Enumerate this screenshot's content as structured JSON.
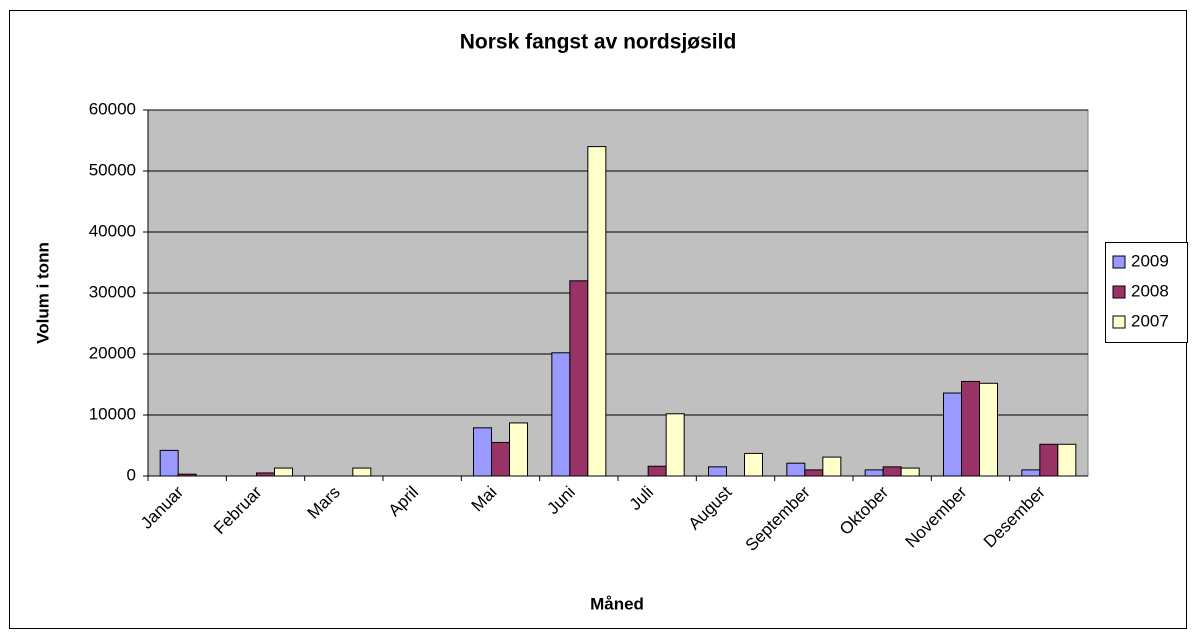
{
  "chart_data": {
    "type": "bar",
    "title": "Norsk fangst av nordsjøsild",
    "x_label": "Måned",
    "y_label": "Volum i tonn",
    "categories": [
      "Januar",
      "Februar",
      "Mars",
      "April",
      "Mai",
      "Juni",
      "Juli",
      "August",
      "September",
      "Oktober",
      "November",
      "Desember"
    ],
    "series": [
      {
        "name": "2009",
        "color": "#9999ff",
        "values": [
          4200,
          0,
          0,
          0,
          7900,
          20200,
          0,
          1500,
          2100,
          1000,
          13600,
          1000
        ]
      },
      {
        "name": "2008",
        "color": "#993366",
        "values": [
          300,
          500,
          0,
          0,
          5500,
          32000,
          1600,
          0,
          1000,
          1500,
          15500,
          5200
        ]
      },
      {
        "name": "2007",
        "color": "#ffffcc",
        "values": [
          0,
          1300,
          1300,
          0,
          8700,
          54000,
          10200,
          3700,
          3100,
          1300,
          15200,
          5200
        ]
      }
    ],
    "ylim": [
      0,
      60000
    ],
    "yticks": [
      0,
      10000,
      20000,
      30000,
      40000,
      50000,
      60000
    ],
    "grid": true,
    "legend": "right"
  }
}
